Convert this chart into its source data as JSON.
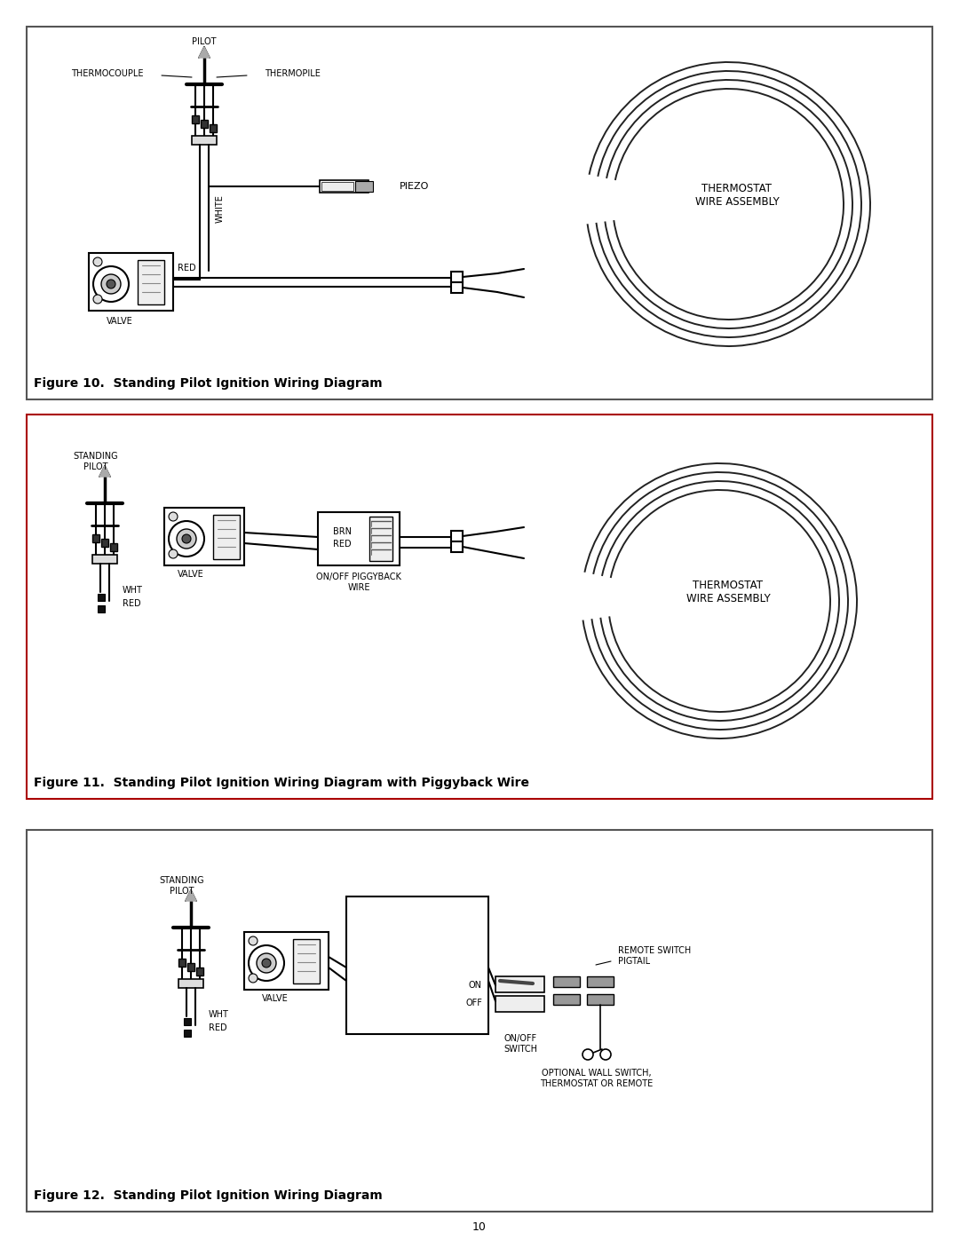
{
  "bg": "#ffffff",
  "border": "#555555",
  "black": "#000000",
  "darkgray": "#333333",
  "gray": "#888888",
  "lightgray": "#cccccc",
  "fig10_caption": "Figure 10.  Standing Pilot Ignition Wiring Diagram",
  "fig11_caption": "Figure 11.  Standing Pilot Ignition Wiring Diagram with Piggyback Wire",
  "fig12_caption": "Figure 12.  Standing Pilot Ignition Wiring Diagram",
  "page_num": "10",
  "lbl_thermocouple": "THERMOCOUPLE",
  "lbl_pilot": "PILOT",
  "lbl_thermopile": "THERMOPILE",
  "lbl_valve": "VALVE",
  "lbl_white": "WHITE",
  "lbl_red": "RED",
  "lbl_piezo": "PIEZO",
  "lbl_thermostat": "THERMOSTAT\nWIRE ASSEMBLY",
  "lbl_standing_pilot": "STANDING\nPILOT",
  "lbl_brn": "BRN",
  "lbl_onoff_pb": "ON/OFF PIGGYBACK\nWIRE",
  "lbl_wht": "WHT",
  "lbl_on": "ON",
  "lbl_off": "OFF",
  "lbl_onoff_sw": "ON/OFF\nSWITCH",
  "lbl_remote_sw": "REMOTE SWITCH\nPIGTAIL",
  "lbl_optional": "OPTIONAL WALL SWITCH,\nTHERMOSTAT OR REMOTE"
}
